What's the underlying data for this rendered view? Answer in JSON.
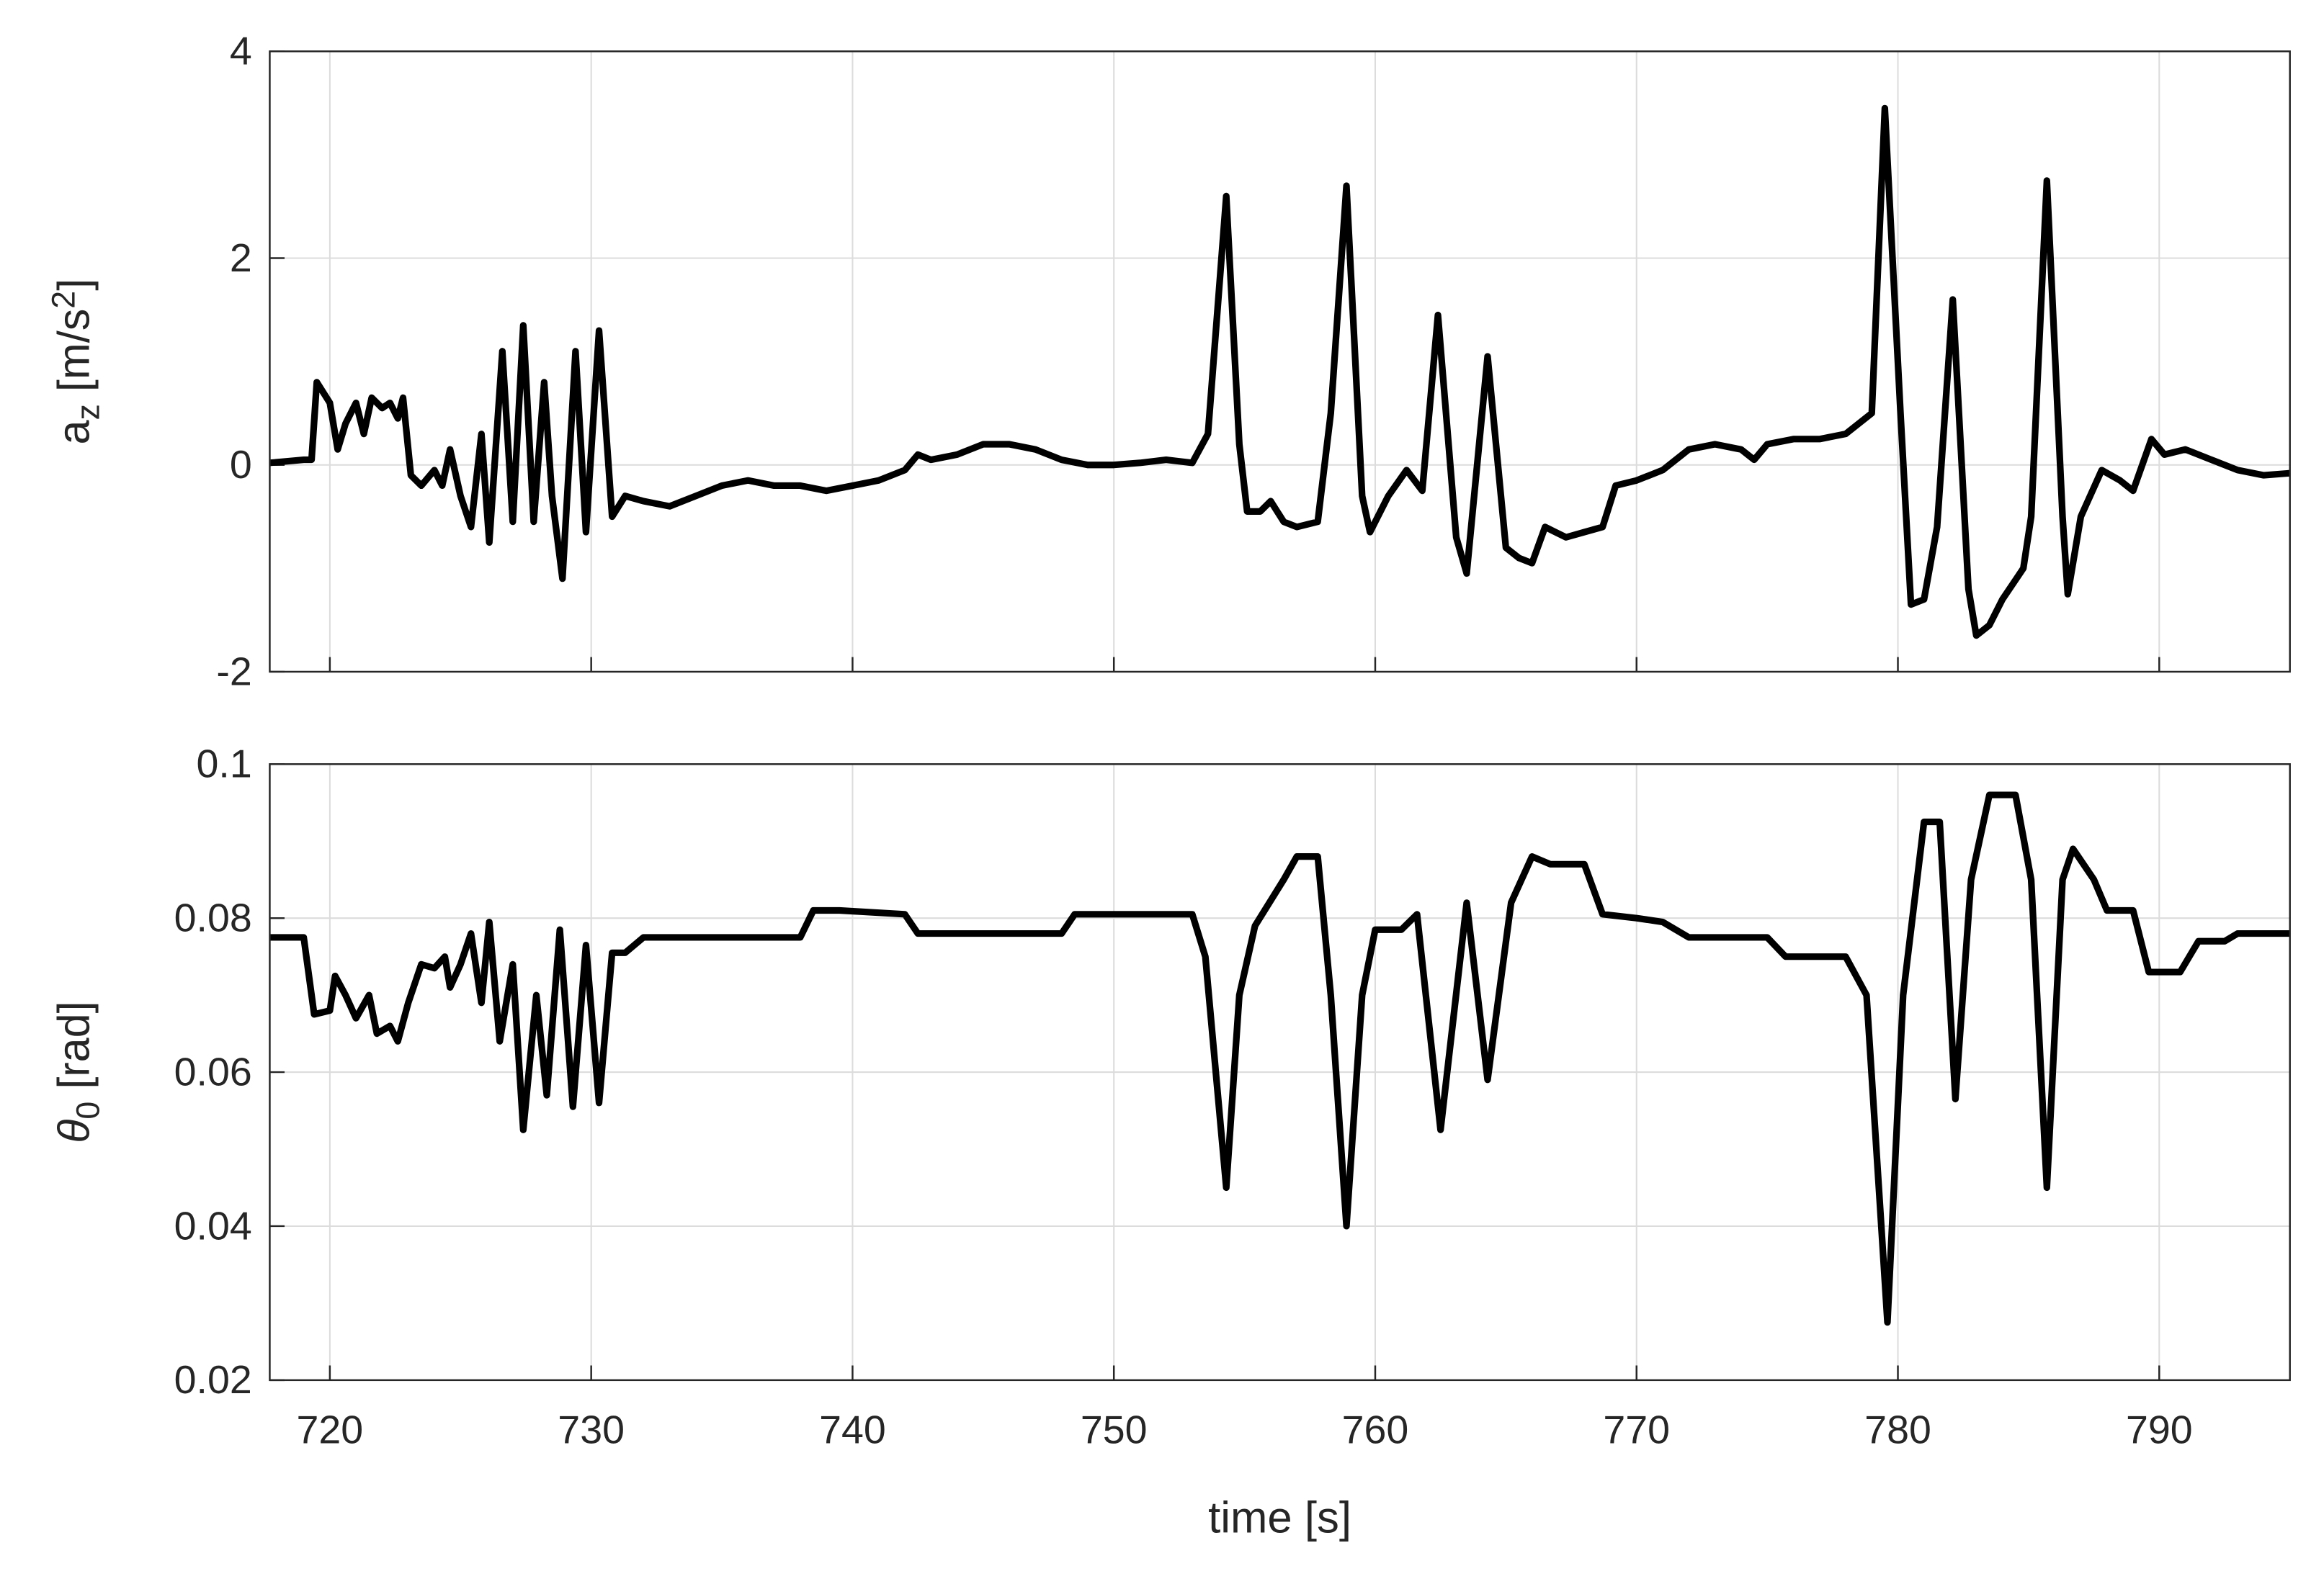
{
  "chart_data": [
    {
      "type": "line",
      "ylabel": [
        "a",
        "z",
        " [m/s",
        "2",
        "]"
      ],
      "xlim": [
        717.7,
        795
      ],
      "xticks": [
        720,
        730,
        740,
        750,
        760,
        770,
        780,
        790
      ],
      "ylim": [
        -2,
        4
      ],
      "yticks": [
        -2,
        0,
        2,
        4
      ],
      "grid": true,
      "x": [
        717.7,
        719,
        719.3,
        719.5,
        720,
        720.3,
        720.6,
        721,
        721.3,
        721.6,
        722,
        722.3,
        722.6,
        722.8,
        723.1,
        723.5,
        724,
        724.3,
        724.6,
        725,
        725.4,
        725.8,
        726.1,
        726.6,
        727,
        727.4,
        727.8,
        728.2,
        728.5,
        728.9,
        729.4,
        729.8,
        730.3,
        730.8,
        731.3,
        732,
        733,
        734,
        735,
        736,
        737,
        738,
        739,
        740,
        741,
        742,
        742.5,
        743,
        744,
        745,
        746,
        747,
        748,
        749,
        750,
        751,
        752,
        753,
        753.6,
        754.3,
        754.8,
        755.1,
        755.6,
        756,
        756.5,
        757,
        757.8,
        758.3,
        758.9,
        759.5,
        759.8,
        760.5,
        761.2,
        761.8,
        762.4,
        763.1,
        763.5,
        764.3,
        765,
        765.5,
        766,
        766.5,
        767.3,
        768,
        768.7,
        769.2,
        770,
        771,
        772,
        773,
        774,
        774.5,
        775,
        776,
        777,
        778,
        779,
        779.5,
        780.1,
        780.5,
        781,
        781.5,
        782.1,
        782.7,
        783,
        783.5,
        784,
        784.8,
        785.1,
        785.7,
        786.3,
        786.5,
        787,
        787.8,
        788.5,
        789,
        789.7,
        790.2,
        791,
        792,
        793,
        794,
        795
      ],
      "series": [
        {
          "color": "#000000",
          "values": [
            0.02,
            0.05,
            0.05,
            0.8,
            0.6,
            0.15,
            0.4,
            0.6,
            0.3,
            0.65,
            0.55,
            0.6,
            0.45,
            0.65,
            -0.1,
            -0.2,
            -0.05,
            -0.2,
            0.15,
            -0.3,
            -0.6,
            0.3,
            -0.75,
            1.1,
            -0.55,
            1.35,
            -0.55,
            0.8,
            -0.3,
            -1.1,
            1.1,
            -0.65,
            1.3,
            -0.5,
            -0.3,
            -0.35,
            -0.4,
            -0.3,
            -0.2,
            -0.15,
            -0.2,
            -0.2,
            -0.25,
            -0.2,
            -0.15,
            -0.05,
            0.1,
            0.05,
            0.1,
            0.2,
            0.2,
            0.15,
            0.05,
            0,
            0,
            0.02,
            0.05,
            0.02,
            0.3,
            2.6,
            0.2,
            -0.45,
            -0.45,
            -0.35,
            -0.55,
            -0.6,
            -0.55,
            0.5,
            2.7,
            -0.3,
            -0.65,
            -0.3,
            -0.05,
            -0.25,
            1.45,
            -0.7,
            -1.05,
            1.05,
            -0.8,
            -0.9,
            -0.95,
            -0.6,
            -0.7,
            -0.65,
            -0.6,
            -0.2,
            -0.15,
            -0.05,
            0.15,
            0.2,
            0.15,
            0.05,
            0.2,
            0.25,
            0.25,
            0.3,
            0.5,
            3.45,
            0.5,
            -1.35,
            -1.3,
            -0.6,
            1.6,
            -1.2,
            -1.65,
            -1.55,
            -1.3,
            -1.0,
            -0.5,
            2.75,
            -0.5,
            -1.25,
            -0.5,
            -0.05,
            -0.15,
            -0.25,
            0.25,
            0.1,
            0.15,
            0.05,
            -0.05,
            -0.1,
            -0.08
          ]
        }
      ]
    },
    {
      "type": "line",
      "ylabel": [
        "θ",
        "0",
        " [rad]"
      ],
      "xlabel": "time [s]",
      "xlim": [
        717.7,
        795
      ],
      "xticks": [
        720,
        730,
        740,
        750,
        760,
        770,
        780,
        790
      ],
      "ylim": [
        0.02,
        0.1
      ],
      "yticks": [
        0.02,
        0.04,
        0.06,
        0.08,
        0.1
      ],
      "grid": true,
      "x": [
        717.7,
        719,
        719.4,
        720,
        720.2,
        720.6,
        721,
        721.5,
        721.8,
        722.3,
        722.6,
        723,
        723.5,
        724,
        724.4,
        724.6,
        725,
        725.4,
        725.8,
        726.1,
        726.5,
        727,
        727.4,
        727.9,
        728.3,
        728.8,
        729.3,
        729.8,
        730.3,
        730.8,
        731.3,
        732,
        738,
        738.5,
        739.5,
        742,
        742.5,
        748,
        748.5,
        753,
        753.5,
        754.3,
        754.8,
        755.4,
        756.5,
        757,
        757.8,
        758.3,
        758.9,
        759.5,
        760,
        761,
        761.6,
        762.5,
        763.5,
        764.3,
        765.2,
        766,
        766.7,
        768,
        768.7,
        770,
        771,
        772,
        775,
        775.7,
        778,
        778.8,
        779.6,
        780.2,
        781,
        781.6,
        782.2,
        782.8,
        783.5,
        784.5,
        785.1,
        785.7,
        786.3,
        786.7,
        787.5,
        788,
        789,
        789.6,
        790.8,
        791.5,
        792.5,
        793,
        795
      ],
      "series": [
        {
          "color": "#000000",
          "values": [
            0.0775,
            0.0775,
            0.0675,
            0.068,
            0.0725,
            0.07,
            0.067,
            0.07,
            0.065,
            0.066,
            0.064,
            0.069,
            0.074,
            0.0735,
            0.075,
            0.071,
            0.074,
            0.078,
            0.069,
            0.0795,
            0.064,
            0.074,
            0.0525,
            0.07,
            0.057,
            0.0785,
            0.0555,
            0.0765,
            0.056,
            0.0755,
            0.0755,
            0.0775,
            0.0775,
            0.081,
            0.081,
            0.0805,
            0.078,
            0.078,
            0.0805,
            0.0805,
            0.075,
            0.045,
            0.07,
            0.079,
            0.085,
            0.088,
            0.088,
            0.07,
            0.04,
            0.07,
            0.0785,
            0.0785,
            0.0805,
            0.0525,
            0.082,
            0.059,
            0.082,
            0.088,
            0.087,
            0.087,
            0.0805,
            0.08,
            0.0795,
            0.0775,
            0.0775,
            0.075,
            0.075,
            0.07,
            0.0275,
            0.07,
            0.0925,
            0.0925,
            0.0565,
            0.085,
            0.096,
            0.096,
            0.085,
            0.045,
            0.085,
            0.089,
            0.085,
            0.081,
            0.081,
            0.073,
            0.073,
            0.077,
            0.077,
            0.078,
            0.078
          ]
        }
      ]
    }
  ]
}
